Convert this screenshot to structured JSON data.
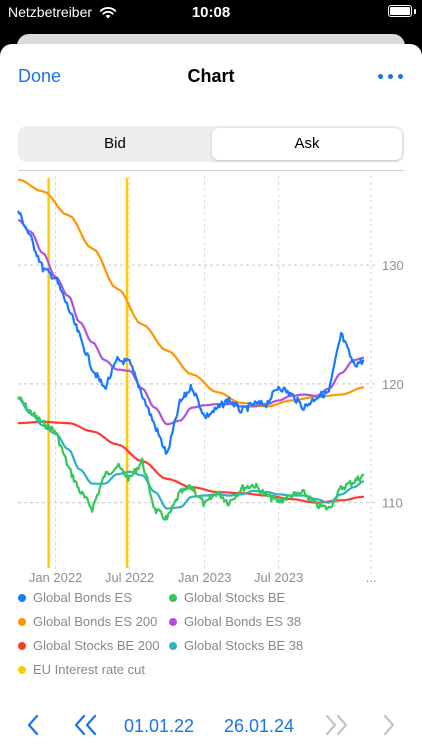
{
  "status": {
    "carrier": "Netzbetreiber",
    "time": "10:08"
  },
  "nav": {
    "done_label": "Done",
    "title": "Chart"
  },
  "segments": {
    "bid": "Bid",
    "ask": "Ask",
    "selected": "Ask"
  },
  "chart_data": {
    "type": "line",
    "x_ticks": [
      "Jan 2022",
      "Jul 2022",
      "Jan 2023",
      "Jul 2023",
      "..."
    ],
    "y_ticks": [
      130,
      120,
      110
    ],
    "xlim": [
      "2021-10-01",
      "2024-01-26"
    ],
    "ylim": [
      104.5,
      137.5
    ],
    "vlines": {
      "name": "EU Interest rate cut",
      "x": [
        "2021-12-15",
        "2022-06-25"
      ],
      "color": "#ffcc00"
    },
    "series": [
      {
        "name": "Global Bonds ES",
        "color": "#1a7aff",
        "x": [
          "2021-10-01",
          "2021-11-01",
          "2021-12-01",
          "2022-01-01",
          "2022-02-01",
          "2022-03-01",
          "2022-04-01",
          "2022-05-01",
          "2022-06-01",
          "2022-07-01",
          "2022-08-01",
          "2022-09-01",
          "2022-10-01",
          "2022-11-01",
          "2022-12-01",
          "2023-01-01",
          "2023-02-01",
          "2023-03-01",
          "2023-04-01",
          "2023-05-01",
          "2023-06-01",
          "2023-07-01",
          "2023-08-01",
          "2023-09-01",
          "2023-10-01",
          "2023-11-01",
          "2023-12-01",
          "2024-01-01",
          "2024-01-26"
        ],
        "values": [
          134.6,
          132.3,
          129.7,
          128.9,
          126.4,
          124.0,
          121.3,
          119.6,
          122.0,
          121.8,
          119.1,
          116.5,
          114.0,
          118.4,
          119.8,
          117.2,
          117.9,
          118.7,
          117.7,
          118.3,
          118.3,
          119.8,
          119.1,
          118.0,
          118.9,
          119.3,
          124.2,
          121.6,
          122.0
        ]
      },
      {
        "name": "Global Stocks BE",
        "color": "#34c759",
        "x": [
          "2021-10-01",
          "2021-11-01",
          "2021-12-01",
          "2022-01-01",
          "2022-02-01",
          "2022-03-01",
          "2022-04-01",
          "2022-05-01",
          "2022-06-01",
          "2022-07-01",
          "2022-08-01",
          "2022-09-01",
          "2022-10-01",
          "2022-11-01",
          "2022-12-01",
          "2023-01-01",
          "2023-02-01",
          "2023-03-01",
          "2023-04-01",
          "2023-05-01",
          "2023-06-01",
          "2023-07-01",
          "2023-08-01",
          "2023-09-01",
          "2023-10-01",
          "2023-11-01",
          "2023-12-01",
          "2024-01-01",
          "2024-01-26"
        ],
        "values": [
          118.9,
          117.6,
          116.7,
          116.0,
          113.0,
          111.0,
          109.5,
          112.3,
          113.1,
          112.0,
          113.5,
          109.4,
          108.6,
          110.8,
          111.3,
          109.8,
          110.9,
          110.0,
          111.2,
          111.5,
          110.6,
          110.1,
          110.6,
          110.8,
          109.8,
          109.5,
          111.2,
          111.8,
          112.3
        ]
      },
      {
        "name": "Global Bonds ES 200",
        "color": "#ff9500",
        "x": [
          "2021-10-01",
          "2021-12-01",
          "2022-02-01",
          "2022-04-01",
          "2022-06-01",
          "2022-08-01",
          "2022-10-01",
          "2022-12-01",
          "2023-02-01",
          "2023-04-01",
          "2023-06-01",
          "2023-08-01",
          "2023-10-01",
          "2023-12-01",
          "2024-01-26"
        ],
        "values": [
          137.2,
          136.2,
          134.2,
          131.4,
          128.0,
          125.0,
          122.8,
          120.8,
          119.3,
          118.4,
          118.1,
          118.6,
          118.9,
          119.1,
          119.7
        ]
      },
      {
        "name": "Global Bonds ES 38",
        "color": "#af52de",
        "x": [
          "2021-10-01",
          "2021-11-01",
          "2021-12-01",
          "2022-01-01",
          "2022-02-01",
          "2022-03-01",
          "2022-04-01",
          "2022-05-01",
          "2022-06-01",
          "2022-07-01",
          "2022-08-01",
          "2022-09-01",
          "2022-10-01",
          "2022-11-01",
          "2022-12-01",
          "2023-01-01",
          "2023-02-01",
          "2023-03-01",
          "2023-04-01",
          "2023-05-01",
          "2023-06-01",
          "2023-07-01",
          "2023-08-01",
          "2023-09-01",
          "2023-10-01",
          "2023-11-01",
          "2023-12-01",
          "2024-01-01",
          "2024-01-26"
        ],
        "values": [
          133.8,
          132.8,
          131.0,
          129.0,
          127.4,
          125.2,
          123.5,
          122.0,
          121.2,
          121.1,
          119.6,
          118.0,
          116.6,
          116.9,
          118.0,
          118.2,
          118.3,
          118.3,
          118.1,
          118.1,
          118.3,
          118.6,
          119.0,
          119.1,
          119.0,
          119.6,
          120.9,
          122.0,
          122.2
        ]
      },
      {
        "name": "Global Stocks BE 200",
        "color": "#ff3b30",
        "x": [
          "2021-10-01",
          "2021-12-01",
          "2022-02-01",
          "2022-04-01",
          "2022-06-01",
          "2022-08-01",
          "2022-10-01",
          "2022-12-01",
          "2023-02-01",
          "2023-04-01",
          "2023-06-01",
          "2023-08-01",
          "2023-10-01",
          "2023-12-01",
          "2024-01-26"
        ],
        "values": [
          116.7,
          116.8,
          116.7,
          116.0,
          114.9,
          113.5,
          112.0,
          111.3,
          110.9,
          110.8,
          110.6,
          110.3,
          110.0,
          110.2,
          110.5
        ]
      },
      {
        "name": "Global Stocks BE 38",
        "color": "#30b0c7",
        "x": [
          "2021-10-01",
          "2021-11-01",
          "2021-12-01",
          "2022-01-01",
          "2022-02-01",
          "2022-03-01",
          "2022-04-01",
          "2022-05-01",
          "2022-06-01",
          "2022-07-01",
          "2022-08-01",
          "2022-09-01",
          "2022-10-01",
          "2022-11-01",
          "2022-12-01",
          "2023-01-01",
          "2023-02-01",
          "2023-03-01",
          "2023-04-01",
          "2023-05-01",
          "2023-06-01",
          "2023-07-01",
          "2023-08-01",
          "2023-09-01",
          "2023-10-01",
          "2023-11-01",
          "2023-12-01",
          "2024-01-01",
          "2024-01-26"
        ],
        "values": [
          118.8,
          117.5,
          116.5,
          115.8,
          114.5,
          112.8,
          111.6,
          111.6,
          112.4,
          112.6,
          112.3,
          110.9,
          109.5,
          109.6,
          110.5,
          110.6,
          110.7,
          110.6,
          110.7,
          111.0,
          110.9,
          110.7,
          110.6,
          110.6,
          110.3,
          110.0,
          110.7,
          111.3,
          111.8
        ]
      }
    ]
  },
  "legend": {
    "items": [
      {
        "label": "Global Bonds ES",
        "color": "#1a7aff"
      },
      {
        "label": "Global Stocks BE",
        "color": "#34c759"
      },
      {
        "label": "Global Bonds ES 200",
        "color": "#ff9500"
      },
      {
        "label": "Global Bonds ES 38",
        "color": "#af52de"
      },
      {
        "label": "Global Stocks BE 200",
        "color": "#ff3b30"
      },
      {
        "label": "Global Stocks BE 38",
        "color": "#30b0c7"
      },
      {
        "label": "EU Interest rate cut",
        "color": "#ffcc00"
      }
    ]
  },
  "bottom_bar": {
    "start_date": "01.01.22",
    "end_date": "26.01.24"
  },
  "icons": [
    "wifi-icon",
    "battery-icon",
    "ellipsis-icon",
    "chevron-left-icon",
    "double-chevron-left-icon",
    "double-chevron-right-icon",
    "chevron-right-icon"
  ]
}
